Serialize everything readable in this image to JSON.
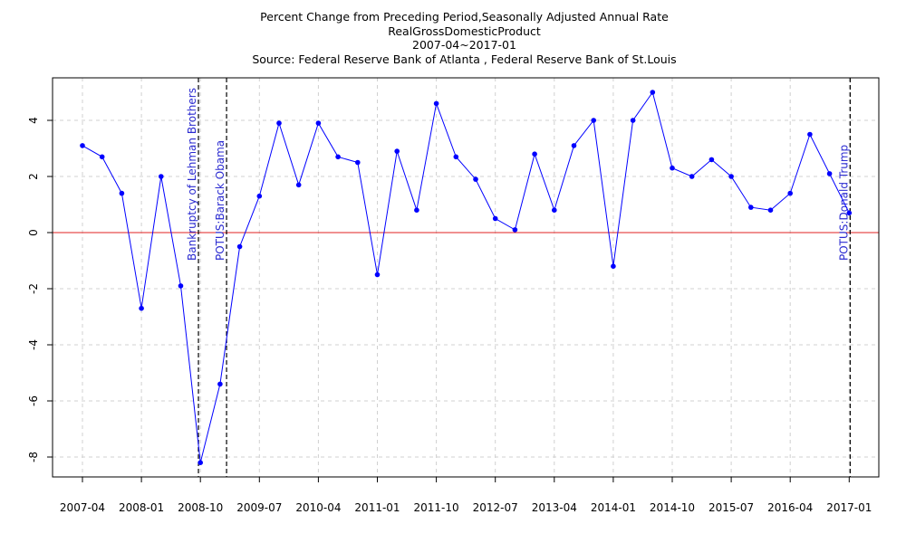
{
  "chart_data": {
    "type": "line",
    "title_lines": [
      "Percent Change from Preceding Period,Seasonally Adjusted Annual Rate",
      "RealGrossDomesticProduct",
      "2007-04~2017-01",
      "Source: Federal Reserve Bank of Atlanta , Federal Reserve Bank of St.Louis"
    ],
    "xlabel": "",
    "ylabel": "",
    "ylim": [
      -8.7,
      5.4
    ],
    "y_ticks": [
      -8,
      -6,
      -4,
      -2,
      0,
      2,
      4
    ],
    "x_tick_labels": [
      "2007-04",
      "2008-01",
      "2008-10",
      "2009-07",
      "2010-04",
      "2011-01",
      "2011-10",
      "2012-07",
      "2013-04",
      "2014-01",
      "2014-10",
      "2015-07",
      "2016-04",
      "2017-01"
    ],
    "grid": true,
    "reference_line": {
      "y": 0,
      "color": "#e02020"
    },
    "series": [
      {
        "color": "#0000ff",
        "x": [
          "2007-04",
          "2007-07",
          "2007-10",
          "2008-01",
          "2008-04",
          "2008-07",
          "2008-10",
          "2009-01",
          "2009-04",
          "2009-07",
          "2009-10",
          "2010-01",
          "2010-04",
          "2010-07",
          "2010-10",
          "2011-01",
          "2011-04",
          "2011-07",
          "2011-10",
          "2012-01",
          "2012-04",
          "2012-07",
          "2012-10",
          "2013-01",
          "2013-04",
          "2013-07",
          "2013-10",
          "2014-01",
          "2014-04",
          "2014-07",
          "2014-10",
          "2015-01",
          "2015-04",
          "2015-07",
          "2015-10",
          "2016-01",
          "2016-04",
          "2016-07",
          "2016-10",
          "2017-01"
        ],
        "values": [
          3.1,
          2.7,
          1.4,
          -2.7,
          2.0,
          -1.9,
          -8.2,
          -5.4,
          -0.5,
          1.3,
          3.9,
          1.7,
          3.9,
          2.7,
          2.5,
          -1.5,
          2.9,
          0.8,
          4.6,
          2.7,
          1.9,
          0.5,
          0.1,
          2.8,
          0.8,
          3.1,
          4.0,
          -1.2,
          4.0,
          5.0,
          2.3,
          2.0,
          2.6,
          2.0,
          0.9,
          0.8,
          1.4,
          3.5,
          2.1,
          0.7
        ]
      }
    ],
    "event_lines": [
      {
        "position": 5.9,
        "label": "Bankruptcy of Lehman Brothers"
      },
      {
        "position": 7.33,
        "label": "POTUS:Barack Obama"
      },
      {
        "position": 39.05,
        "label": "POTUS:Donald Trump"
      }
    ]
  }
}
